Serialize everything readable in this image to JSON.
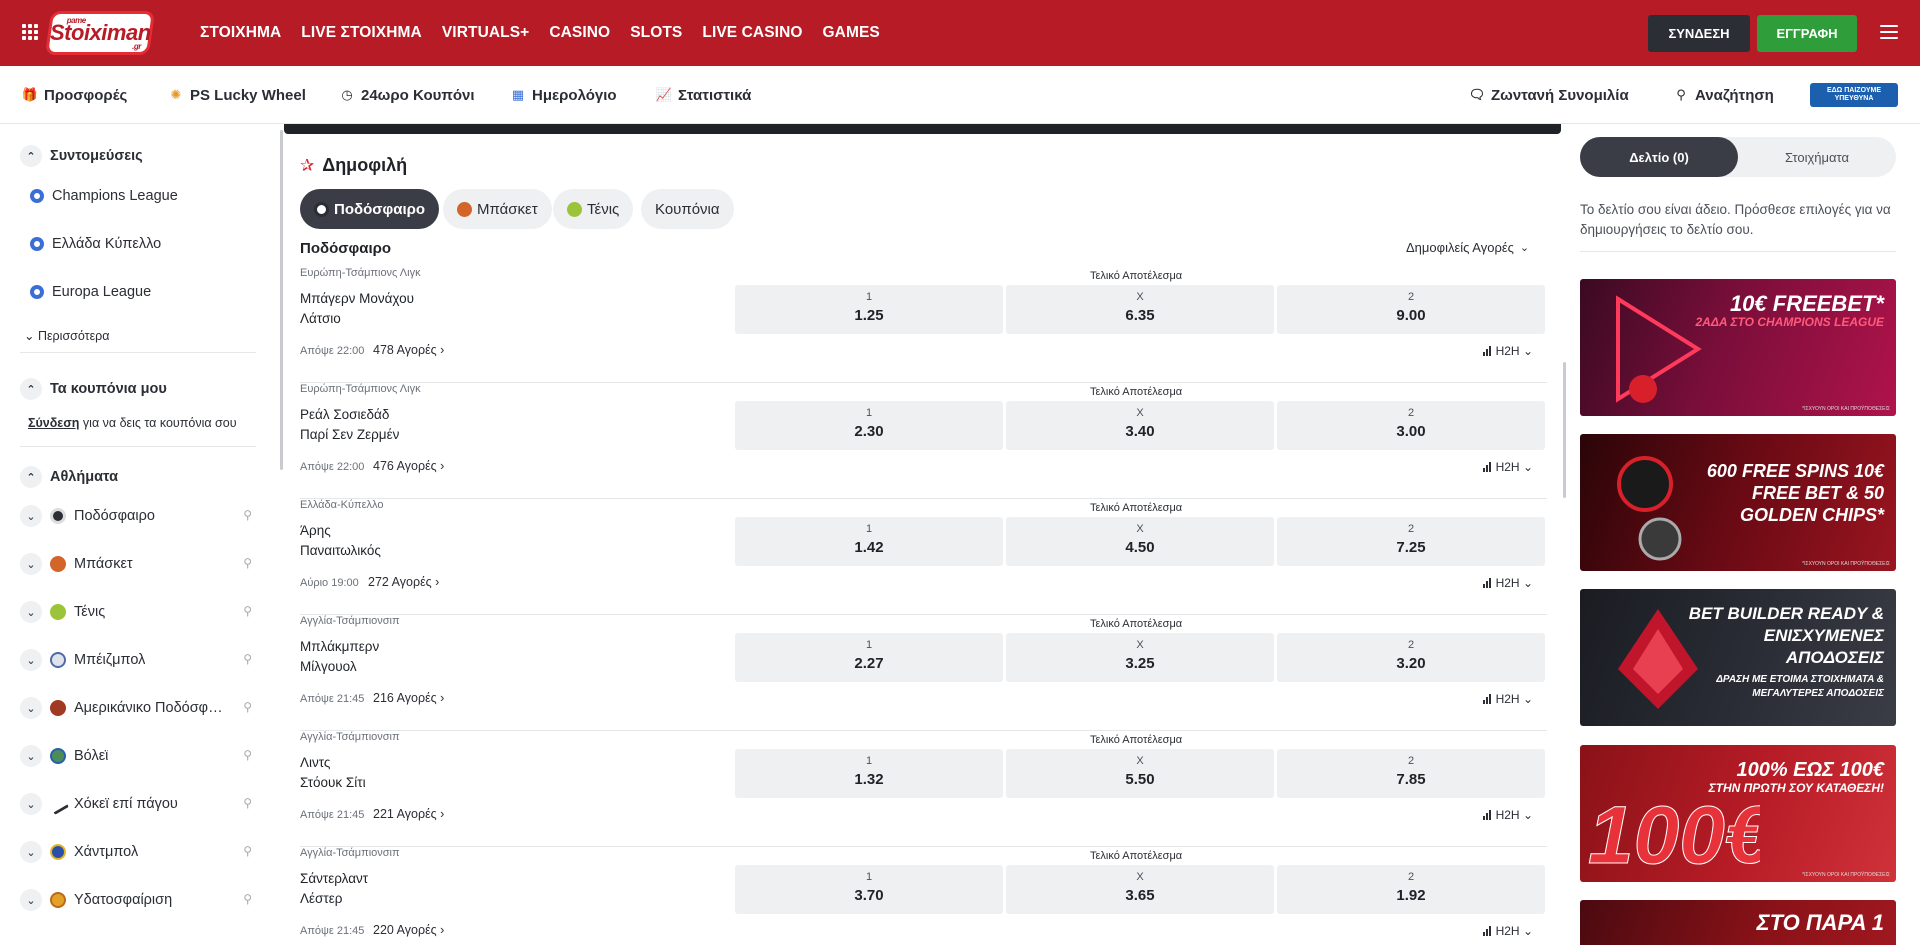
{
  "header": {
    "logo_text": "Stoiximan",
    "logo_mini": "pame",
    "logo_gr": ".gr",
    "nav": [
      "ΣΤΟΙΧΗΜΑ",
      "LIVE ΣΤΟΙΧΗΜΑ",
      "VIRTUALS+",
      "CASINO",
      "SLOTS",
      "LIVE CASINO",
      "GAMES"
    ],
    "login_label": "ΣΥΝΔΕΣΗ",
    "register_label": "ΕΓΓΡΑΦΗ"
  },
  "subnav": {
    "offers": "Προσφορές",
    "lucky_wheel": "PS Lucky Wheel",
    "coupon24": "24ωρο Κουπόνι",
    "calendar": "Ημερολόγιο",
    "stats": "Στατιστικά",
    "chat": "Ζωντανή Συνομιλία",
    "search": "Αναζήτηση",
    "rg_badge": "ΕΔΩ ΠΑΙΖΟΥΜΕ ΥΠΕΥΘΥΝΑ"
  },
  "sidebar": {
    "shortcuts_title": "Συντομεύσεις",
    "shortcuts": [
      "Champions League",
      "Ελλάδα Κύπελλο",
      "Europa League"
    ],
    "more": "Περισσότερα",
    "my_coupons_title": "Τα κουπόνια μου",
    "login_link": "Σύνδεση",
    "login_rest": " για να δεις τα κουπόνια σου",
    "sports_title": "Αθλήματα",
    "sports": [
      "Ποδόσφαιρο",
      "Μπάσκετ",
      "Τένις",
      "Μπέιζμπολ",
      "Αμερικάνικο Ποδόσφαιρο",
      "Βόλεϊ",
      "Χόκεϊ επί πάγου",
      "Χάντμπολ",
      "Υδατοσφαίριση"
    ]
  },
  "main": {
    "title": "Δημοφιλή",
    "tabs": [
      "Ποδόσφαιρο",
      "Μπάσκετ",
      "Τένις",
      "Κουπόνια"
    ],
    "section": "Ποδόσφαιρο",
    "markets_dropdown": "Δημοφιλείς Αγορές",
    "market_label": "Τελικό Αποτέλεσμα",
    "h2h": "H2H",
    "events": [
      {
        "league": "Ευρώπη-Τσάμπιονς Λιγκ",
        "home": "Μπάγερν Μονάχου",
        "away": "Λάτσιο",
        "o1": "1.25",
        "ox": "6.35",
        "o2": "9.00",
        "time": "Απόψε 22:00",
        "markets": "478 Αγορές"
      },
      {
        "league": "Ευρώπη-Τσάμπιονς Λιγκ",
        "home": "Ρεάλ Σοσιεδάδ",
        "away": "Παρί Σεν Ζερμέν",
        "o1": "2.30",
        "ox": "3.40",
        "o2": "3.00",
        "time": "Απόψε 22:00",
        "markets": "476 Αγορές"
      },
      {
        "league": "Ελλάδα-Κύπελλο",
        "home": "Άρης",
        "away": "Παναιτωλικός",
        "o1": "1.42",
        "ox": "4.50",
        "o2": "7.25",
        "time": "Αύριο 19:00",
        "markets": "272 Αγορές"
      },
      {
        "league": "Αγγλία-Τσάμπιονσιπ",
        "home": "Μπλάκμπερν",
        "away": "Μίλγουολ",
        "o1": "2.27",
        "ox": "3.25",
        "o2": "3.20",
        "time": "Απόψε 21:45",
        "markets": "216 Αγορές"
      },
      {
        "league": "Αγγλία-Τσάμπιονσιπ",
        "home": "Λιντς",
        "away": "Στόουκ Σίτι",
        "o1": "1.32",
        "ox": "5.50",
        "o2": "7.85",
        "time": "Απόψε 21:45",
        "markets": "221 Αγορές"
      },
      {
        "league": "Αγγλία-Τσάμπιονσιπ",
        "home": "Σάντερλαντ",
        "away": "Λέστερ",
        "o1": "3.70",
        "ox": "3.65",
        "o2": "1.92",
        "time": "Απόψε 21:45",
        "markets": "220 Αγορές"
      }
    ],
    "outcome_labels": [
      "1",
      "X",
      "2"
    ]
  },
  "betslip": {
    "tab_active": "Δελτίο (0)",
    "tab_inactive": "Στοιχήματα",
    "empty_text": "Το δελτίο σου είναι άδειο. Πρόσθεσε επιλογές για να δημιουργήσεις το δελτίο σου."
  },
  "promos": [
    {
      "main": "10€ FREEBET*",
      "sub": "2ΑΔΑ ΣΤΟ CHAMPIONS LEAGUE",
      "fine": "*ΙΣΧΥΟΥΝ ΟΡΟΙ ΚΑΙ ΠΡΟΫΠΟΘΕΣΕΙΣ"
    },
    {
      "main": "600 FREE SPINS 10€ FREE BET & 50 GOLDEN CHIPS*",
      "sub": "",
      "fine": "*ΙΣΧΥΟΥΝ ΟΡΟΙ ΚΑΙ ΠΡΟΫΠΟΘΕΣΕΙΣ"
    },
    {
      "main": "BET BUILDER READY & ΕΝΙΣΧΥΜΕΝΕΣ ΑΠΟΔΟΣΕΙΣ",
      "sub": "ΔΡΑΣΗ ΜΕ ΕΤΟΙΜΑ ΣΤΟΙΧΗΜΑΤΑ & ΜΕΓΑΛΥΤΕΡΕΣ ΑΠΟΔΟΣΕΙΣ",
      "fine": ""
    },
    {
      "main": "100% ΕΩΣ 100€",
      "sub": "ΣΤΗΝ ΠΡΩΤΗ ΣΟΥ ΚΑΤΑΘΕΣΗ!",
      "fine": "*ΙΣΧΥΟΥΝ ΟΡΟΙ ΚΑΙ ΠΡΟΫΠΟΘΕΣΕΙΣ"
    },
    {
      "main": "ΣΤΟ ΠΑΡΑ 1",
      "sub": "",
      "fine": ""
    }
  ],
  "colors": {
    "brand": "#b71c26",
    "register": "#2e9d3a",
    "dark": "#2b2e35"
  }
}
